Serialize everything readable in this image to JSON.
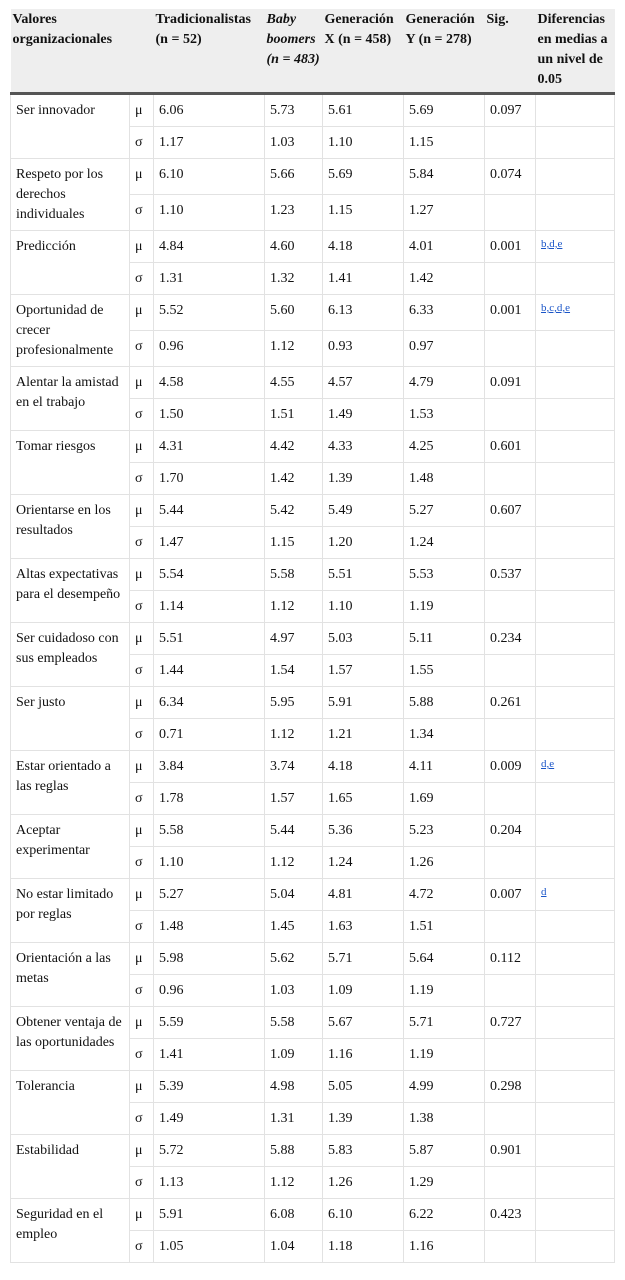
{
  "headers": {
    "values": "Valores organizacionales",
    "trad": "Tradicionalistas (n = 52)",
    "baby": "Baby boomers (n = 483)",
    "genx": "Generación X (n = 458)",
    "geny": "Generación Y (n = 278)",
    "sig": "Sig.",
    "diff": "Diferencias en medias a un nivel de 0.05"
  },
  "rows": [
    {
      "name": "Ser innovador",
      "mu": [
        "6.06",
        "5.73",
        "5.61",
        "5.69"
      ],
      "sigma": [
        "1.17",
        "1.03",
        "1.10",
        "1.15"
      ],
      "sig": "0.097",
      "diff": ""
    },
    {
      "name": "Respeto por los derechos individuales",
      "mu": [
        "6.10",
        "5.66",
        "5.69",
        "5.84"
      ],
      "sigma": [
        "1.10",
        "1.23",
        "1.15",
        "1.27"
      ],
      "sig": "0.074",
      "diff": ""
    },
    {
      "name": "Predicción",
      "mu": [
        "4.84",
        "4.60",
        "4.18",
        "4.01"
      ],
      "sigma": [
        "1.31",
        "1.32",
        "1.41",
        "1.42"
      ],
      "sig": "0.001",
      "diff": "b,d,e"
    },
    {
      "name": "Oportunidad de crecer profesionalmente",
      "mu": [
        "5.52",
        "5.60",
        "6.13",
        "6.33"
      ],
      "sigma": [
        "0.96",
        "1.12",
        "0.93",
        "0.97"
      ],
      "sig": "0.001",
      "diff": "b,c,d,e"
    },
    {
      "name": "Alentar la amistad en el trabajo",
      "mu": [
        "4.58",
        "4.55",
        "4.57",
        "4.79"
      ],
      "sigma": [
        "1.50",
        "1.51",
        "1.49",
        "1.53"
      ],
      "sig": "0.091",
      "diff": ""
    },
    {
      "name": "Tomar riesgos",
      "mu": [
        "4.31",
        "4.42",
        "4.33",
        "4.25"
      ],
      "sigma": [
        "1.70",
        "1.42",
        "1.39",
        "1.48"
      ],
      "sig": "0.601",
      "diff": ""
    },
    {
      "name": "Orientarse en los resultados",
      "mu": [
        "5.44",
        "5.42",
        "5.49",
        "5.27"
      ],
      "sigma": [
        "1.47",
        "1.15",
        "1.20",
        "1.24"
      ],
      "sig": "0.607",
      "diff": ""
    },
    {
      "name": "Altas expectativas para el desempeño",
      "mu": [
        "5.54",
        "5.58",
        "5.51",
        "5.53"
      ],
      "sigma": [
        "1.14",
        "1.12",
        "1.10",
        "1.19"
      ],
      "sig": "0.537",
      "diff": ""
    },
    {
      "name": "Ser cuidadoso con sus empleados",
      "mu": [
        "5.51",
        "4.97",
        "5.03",
        "5.11"
      ],
      "sigma": [
        "1.44",
        "1.54",
        "1.57",
        "1.55"
      ],
      "sig": "0.234",
      "diff": ""
    },
    {
      "name": "Ser justo",
      "mu": [
        "6.34",
        "5.95",
        "5.91",
        "5.88"
      ],
      "sigma": [
        "0.71",
        "1.12",
        "1.21",
        "1.34"
      ],
      "sig": "0.261",
      "diff": ""
    },
    {
      "name": "Estar orientado a las reglas",
      "mu": [
        "3.84",
        "3.74",
        "4.18",
        "4.11"
      ],
      "sigma": [
        "1.78",
        "1.57",
        "1.65",
        "1.69"
      ],
      "sig": "0.009",
      "diff": "d,e"
    },
    {
      "name": "Aceptar experimentar",
      "mu": [
        "5.58",
        "5.44",
        "5.36",
        "5.23"
      ],
      "sigma": [
        "1.10",
        "1.12",
        "1.24",
        "1.26"
      ],
      "sig": "0.204",
      "diff": ""
    },
    {
      "name": "No estar limitado por reglas",
      "mu": [
        "5.27",
        "5.04",
        "4.81",
        "4.72"
      ],
      "sigma": [
        "1.48",
        "1.45",
        "1.63",
        "1.51"
      ],
      "sig": "0.007",
      "diff": "d"
    },
    {
      "name": "Orientación a las metas",
      "mu": [
        "5.98",
        "5.62",
        "5.71",
        "5.64"
      ],
      "sigma": [
        "0.96",
        "1.03",
        "1.09",
        "1.19"
      ],
      "sig": "0.112",
      "diff": ""
    },
    {
      "name": "Obtener ventaja de las oportunidades",
      "mu": [
        "5.59",
        "5.58",
        "5.67",
        "5.71"
      ],
      "sigma": [
        "1.41",
        "1.09",
        "1.16",
        "1.19"
      ],
      "sig": "0.727",
      "diff": ""
    },
    {
      "name": "Tolerancia",
      "mu": [
        "5.39",
        "4.98",
        "5.05",
        "4.99"
      ],
      "sigma": [
        "1.49",
        "1.31",
        "1.39",
        "1.38"
      ],
      "sig": "0.298",
      "diff": ""
    },
    {
      "name": "Estabilidad",
      "mu": [
        "5.72",
        "5.88",
        "5.83",
        "5.87"
      ],
      "sigma": [
        "1.13",
        "1.12",
        "1.26",
        "1.29"
      ],
      "sig": "0.901",
      "diff": ""
    },
    {
      "name": "Seguridad en el empleo",
      "mu": [
        "5.91",
        "6.08",
        "6.10",
        "6.22"
      ],
      "sigma": [
        "1.05",
        "1.04",
        "1.18",
        "1.16"
      ],
      "sig": "0.423",
      "diff": ""
    }
  ],
  "symbols": {
    "mu": "μ",
    "sigma": "σ"
  }
}
